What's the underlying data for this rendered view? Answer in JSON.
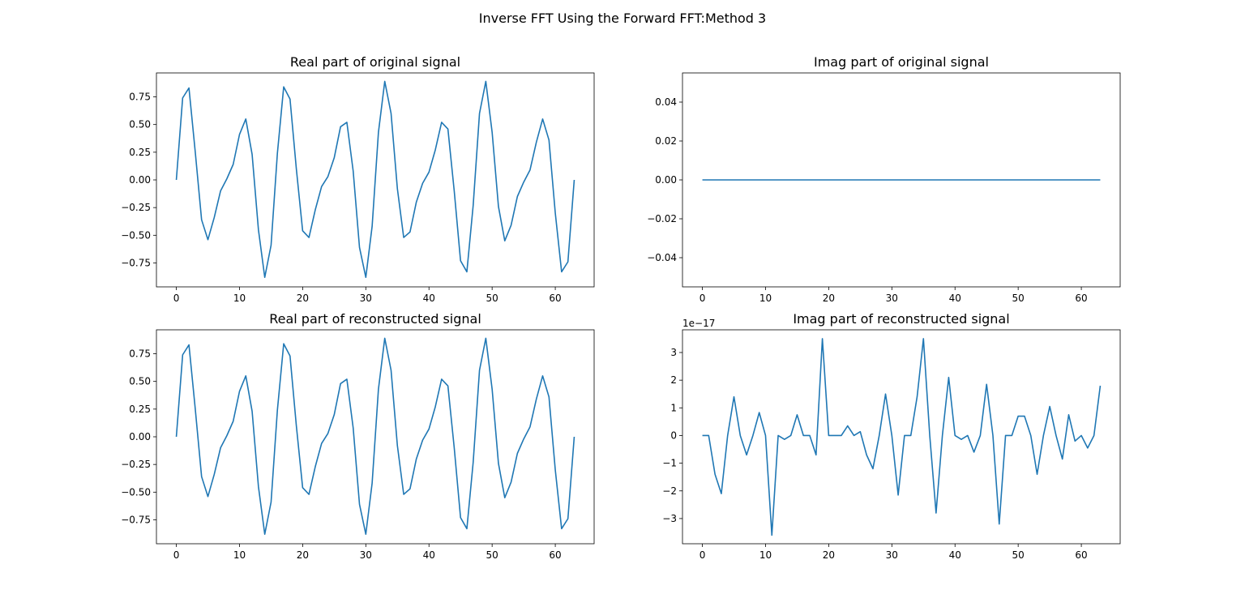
{
  "figure": {
    "suptitle": "Inverse FFT Using the Forward FFT:Method 3"
  },
  "chart_data": [
    {
      "type": "line",
      "title": "Real part of original signal",
      "xlabel": "",
      "ylabel": "",
      "xlim": [
        -3.15,
        66.15
      ],
      "ylim": [
        -0.966,
        0.966
      ],
      "xticks": [
        0,
        10,
        20,
        30,
        40,
        50,
        60
      ],
      "xtick_labels": [
        "0",
        "10",
        "20",
        "30",
        "40",
        "50",
        "60"
      ],
      "yticks": [
        -0.75,
        -0.5,
        -0.25,
        0,
        0.25,
        0.5,
        0.75
      ],
      "ytick_labels": [
        "−0.75",
        "−0.50",
        "−0.25",
        "0.00",
        "0.25",
        "0.50",
        "0.75"
      ],
      "offset_text": "",
      "grid": false,
      "color": "#1f77b4",
      "x": [
        0,
        1,
        2,
        3,
        4,
        5,
        6,
        7,
        8,
        9,
        10,
        11,
        12,
        13,
        14,
        15,
        16,
        17,
        18,
        19,
        20,
        21,
        22,
        23,
        24,
        25,
        26,
        27,
        28,
        29,
        30,
        31,
        32,
        33,
        34,
        35,
        36,
        37,
        38,
        39,
        40,
        41,
        42,
        43,
        44,
        45,
        46,
        47,
        48,
        49,
        50,
        51,
        52,
        53,
        54,
        55,
        56,
        57,
        58,
        59,
        60,
        61,
        62,
        63
      ],
      "y": [
        0.0,
        0.74,
        0.83,
        0.25,
        -0.36,
        -0.54,
        -0.34,
        -0.1,
        0.01,
        0.14,
        0.41,
        0.55,
        0.23,
        -0.45,
        -0.88,
        -0.59,
        0.24,
        0.84,
        0.73,
        0.1,
        -0.46,
        -0.52,
        -0.27,
        -0.06,
        0.03,
        0.2,
        0.48,
        0.52,
        0.08,
        -0.61,
        -0.88,
        -0.42,
        0.43,
        0.89,
        0.6,
        -0.08,
        -0.52,
        -0.47,
        -0.2,
        -0.03,
        0.07,
        0.27,
        0.52,
        0.46,
        -0.1,
        -0.73,
        -0.83,
        -0.23,
        0.6,
        0.89,
        0.43,
        -0.24,
        -0.55,
        -0.41,
        -0.15,
        -0.02,
        0.09,
        0.34,
        0.55,
        0.36,
        -0.3,
        -0.83,
        -0.74,
        0.0
      ]
    },
    {
      "type": "line",
      "title": "Imag part of original signal",
      "xlabel": "",
      "ylabel": "",
      "xlim": [
        -3.15,
        66.15
      ],
      "ylim": [
        -0.055,
        0.055
      ],
      "xticks": [
        0,
        10,
        20,
        30,
        40,
        50,
        60
      ],
      "xtick_labels": [
        "0",
        "10",
        "20",
        "30",
        "40",
        "50",
        "60"
      ],
      "yticks": [
        -0.04,
        -0.02,
        0,
        0.02,
        0.04
      ],
      "ytick_labels": [
        "−0.04",
        "−0.02",
        "0.00",
        "0.02",
        "0.04"
      ],
      "offset_text": "",
      "grid": false,
      "color": "#1f77b4",
      "x": [
        0,
        1,
        2,
        3,
        4,
        5,
        6,
        7,
        8,
        9,
        10,
        11,
        12,
        13,
        14,
        15,
        16,
        17,
        18,
        19,
        20,
        21,
        22,
        23,
        24,
        25,
        26,
        27,
        28,
        29,
        30,
        31,
        32,
        33,
        34,
        35,
        36,
        37,
        38,
        39,
        40,
        41,
        42,
        43,
        44,
        45,
        46,
        47,
        48,
        49,
        50,
        51,
        52,
        53,
        54,
        55,
        56,
        57,
        58,
        59,
        60,
        61,
        62,
        63
      ],
      "y": [
        0,
        0,
        0,
        0,
        0,
        0,
        0,
        0,
        0,
        0,
        0,
        0,
        0,
        0,
        0,
        0,
        0,
        0,
        0,
        0,
        0,
        0,
        0,
        0,
        0,
        0,
        0,
        0,
        0,
        0,
        0,
        0,
        0,
        0,
        0,
        0,
        0,
        0,
        0,
        0,
        0,
        0,
        0,
        0,
        0,
        0,
        0,
        0,
        0,
        0,
        0,
        0,
        0,
        0,
        0,
        0,
        0,
        0,
        0,
        0,
        0,
        0,
        0,
        0
      ]
    },
    {
      "type": "line",
      "title": "Real part of reconstructed signal",
      "xlabel": "",
      "ylabel": "",
      "xlim": [
        -3.15,
        66.15
      ],
      "ylim": [
        -0.966,
        0.966
      ],
      "xticks": [
        0,
        10,
        20,
        30,
        40,
        50,
        60
      ],
      "xtick_labels": [
        "0",
        "10",
        "20",
        "30",
        "40",
        "50",
        "60"
      ],
      "yticks": [
        -0.75,
        -0.5,
        -0.25,
        0,
        0.25,
        0.5,
        0.75
      ],
      "ytick_labels": [
        "−0.75",
        "−0.50",
        "−0.25",
        "0.00",
        "0.25",
        "0.50",
        "0.75"
      ],
      "offset_text": "",
      "grid": false,
      "color": "#1f77b4",
      "x": [
        0,
        1,
        2,
        3,
        4,
        5,
        6,
        7,
        8,
        9,
        10,
        11,
        12,
        13,
        14,
        15,
        16,
        17,
        18,
        19,
        20,
        21,
        22,
        23,
        24,
        25,
        26,
        27,
        28,
        29,
        30,
        31,
        32,
        33,
        34,
        35,
        36,
        37,
        38,
        39,
        40,
        41,
        42,
        43,
        44,
        45,
        46,
        47,
        48,
        49,
        50,
        51,
        52,
        53,
        54,
        55,
        56,
        57,
        58,
        59,
        60,
        61,
        62,
        63
      ],
      "y": [
        0.0,
        0.74,
        0.83,
        0.25,
        -0.36,
        -0.54,
        -0.34,
        -0.1,
        0.01,
        0.14,
        0.41,
        0.55,
        0.23,
        -0.45,
        -0.88,
        -0.59,
        0.24,
        0.84,
        0.73,
        0.1,
        -0.46,
        -0.52,
        -0.27,
        -0.06,
        0.03,
        0.2,
        0.48,
        0.52,
        0.08,
        -0.61,
        -0.88,
        -0.42,
        0.43,
        0.89,
        0.6,
        -0.08,
        -0.52,
        -0.47,
        -0.2,
        -0.03,
        0.07,
        0.27,
        0.52,
        0.46,
        -0.1,
        -0.73,
        -0.83,
        -0.23,
        0.6,
        0.89,
        0.43,
        -0.24,
        -0.55,
        -0.41,
        -0.15,
        -0.02,
        0.09,
        0.34,
        0.55,
        0.36,
        -0.3,
        -0.83,
        -0.74,
        0.0
      ]
    },
    {
      "type": "line",
      "title": "Imag part of reconstructed signal",
      "xlabel": "",
      "ylabel": "",
      "xlim": [
        -3.15,
        66.15
      ],
      "ylim": [
        -3.91,
        3.82
      ],
      "xticks": [
        0,
        10,
        20,
        30,
        40,
        50,
        60
      ],
      "xtick_labels": [
        "0",
        "10",
        "20",
        "30",
        "40",
        "50",
        "60"
      ],
      "yticks": [
        -3,
        -2,
        -1,
        0,
        1,
        2,
        3
      ],
      "ytick_labels": [
        "−3",
        "−2",
        "−1",
        "0",
        "1",
        "2",
        "3"
      ],
      "offset_text": "1e−17",
      "grid": false,
      "color": "#1f77b4",
      "x": [
        0,
        1,
        2,
        3,
        4,
        5,
        6,
        7,
        8,
        9,
        10,
        11,
        12,
        13,
        14,
        15,
        16,
        17,
        18,
        19,
        20,
        21,
        22,
        23,
        24,
        25,
        26,
        27,
        28,
        29,
        30,
        31,
        32,
        33,
        34,
        35,
        36,
        37,
        38,
        39,
        40,
        41,
        42,
        43,
        44,
        45,
        46,
        47,
        48,
        49,
        50,
        51,
        52,
        53,
        54,
        55,
        56,
        57,
        58,
        59,
        60,
        61,
        62,
        63
      ],
      "y": [
        0,
        0,
        -1.4,
        -2.1,
        0,
        1.4,
        0,
        -0.7,
        0,
        0.83,
        0,
        -3.6,
        0,
        -0.14,
        0,
        0.75,
        0,
        0,
        -0.7,
        3.5,
        0,
        0,
        0,
        0.35,
        0,
        0.14,
        -0.7,
        -1.2,
        0,
        1.5,
        0,
        -2.15,
        0,
        0,
        1.4,
        3.5,
        0,
        -2.8,
        0,
        2.1,
        0,
        -0.14,
        0,
        -0.6,
        0,
        1.85,
        0,
        -3.2,
        0,
        0,
        0.7,
        0.7,
        0,
        -1.4,
        0,
        1.05,
        0,
        -0.85,
        0.75,
        -0.2,
        0,
        -0.45,
        0,
        1.8
      ]
    }
  ]
}
